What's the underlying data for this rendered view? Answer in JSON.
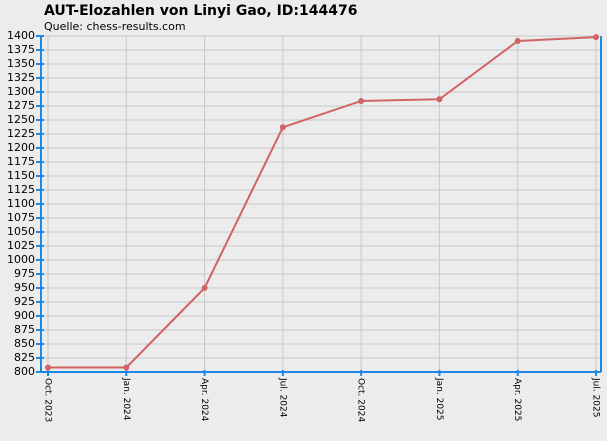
{
  "chart_data": {
    "type": "line",
    "title": "AUT-Elozahlen von Linyi Gao, ID:144476",
    "subtitle": "Quelle: chess-results.com",
    "categories": [
      "Oct. 2023",
      "Jan. 2024",
      "Apr. 2024",
      "Jul. 2024",
      "Oct. 2024",
      "Jan. 2025",
      "Apr. 2025",
      "Jul. 2025"
    ],
    "series": [
      {
        "name": "Elo",
        "color": "#d06464",
        "values": [
          808,
          808,
          950,
          1237,
          1284,
          1287,
          1391,
          1398
        ]
      }
    ],
    "ylim": [
      800,
      1400
    ],
    "yticks": [
      800,
      825,
      850,
      875,
      900,
      925,
      950,
      975,
      1000,
      1025,
      1050,
      1075,
      1100,
      1125,
      1150,
      1175,
      1200,
      1225,
      1250,
      1275,
      1300,
      1325,
      1350,
      1375,
      1400
    ],
    "grid": true
  }
}
